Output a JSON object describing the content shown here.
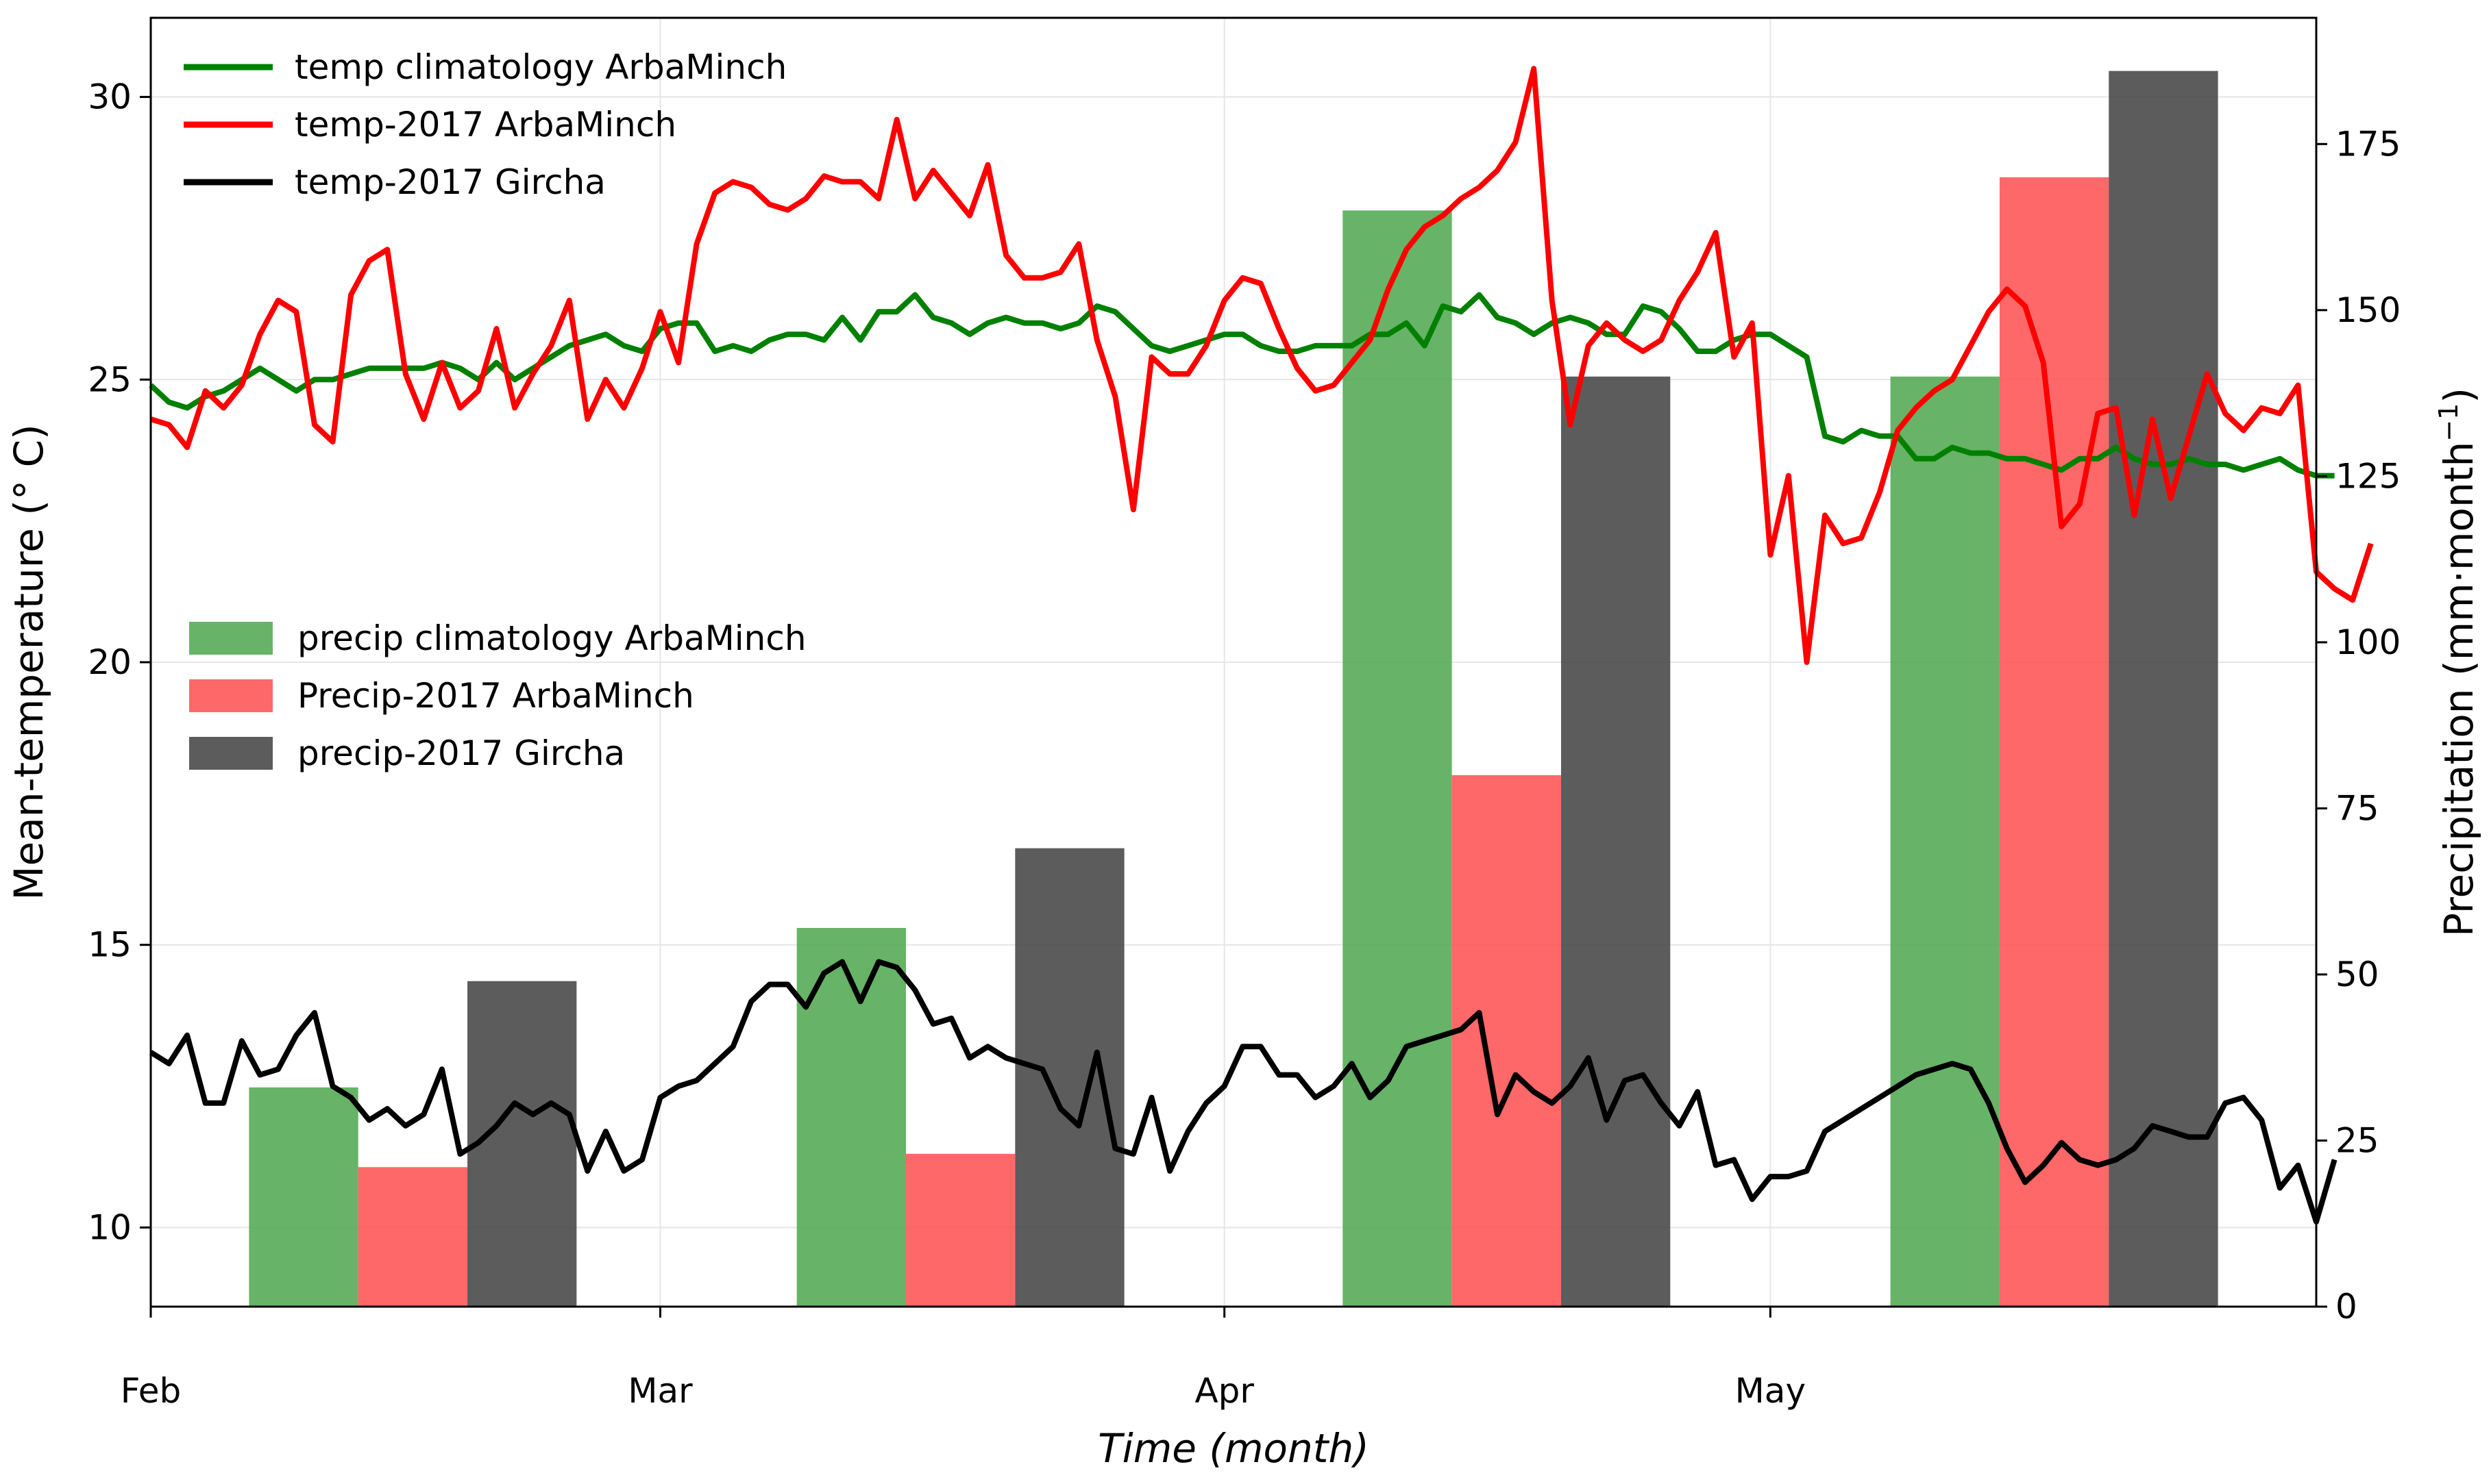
{
  "chart_data": {
    "type": "bar+line",
    "title": "",
    "xlabel": "Time (month)",
    "ylabel_left": "Mean-temperature (° C)",
    "ylabel_right": "Precipitation (mm·month⁻¹)",
    "x_unit": "day index from 1 Feb (0 = Feb 1)",
    "x_range": [
      0,
      119
    ],
    "ylim_left": [
      8.6,
      31.4
    ],
    "ylim_right": [
      0,
      194
    ],
    "x_ticks": [
      {
        "label": "Feb",
        "value": 0
      },
      {
        "label": "Mar",
        "value": 28
      },
      {
        "label": "Apr",
        "value": 59
      },
      {
        "label": "May",
        "value": 89
      }
    ],
    "y_ticks_left": [
      10,
      15,
      20,
      25,
      30
    ],
    "y_ticks_right": [
      0,
      25,
      50,
      75,
      100,
      125,
      150,
      175
    ],
    "grid": true,
    "bar_width_days": 6,
    "bar_groups": [
      {
        "month": "Feb",
        "start_day": 5.4
      },
      {
        "month": "Mar",
        "start_day": 35.5
      },
      {
        "month": "Apr",
        "start_day": 65.5
      },
      {
        "month": "May",
        "start_day": 95.6
      }
    ],
    "bar_series": [
      {
        "name": "precip climatology ArbaMinch",
        "color": "#4ca64c",
        "values": [
          33,
          57,
          165,
          140
        ]
      },
      {
        "name": "Precip-2017 ArbaMinch",
        "color": "#ff4d4d",
        "values": [
          21,
          23,
          80,
          170
        ]
      },
      {
        "name": "precip-2017 Gircha",
        "color": "#404040",
        "values": [
          49,
          69,
          140,
          186
        ]
      }
    ],
    "line_series": [
      {
        "name": "temp climatology ArbaMinch",
        "color": "#008000",
        "x_start": 0,
        "x_step": 1,
        "values": [
          24.9,
          24.6,
          24.5,
          24.7,
          24.8,
          25.0,
          25.2,
          25.0,
          24.8,
          25.0,
          25.0,
          25.1,
          25.2,
          25.2,
          25.2,
          25.2,
          25.3,
          25.2,
          25.0,
          25.3,
          25.0,
          25.2,
          25.4,
          25.6,
          25.7,
          25.8,
          25.6,
          25.5,
          25.9,
          26.0,
          26.0,
          25.5,
          25.6,
          25.5,
          25.7,
          25.8,
          25.8,
          25.7,
          26.1,
          25.7,
          26.2,
          26.2,
          26.5,
          26.1,
          26.0,
          25.8,
          26.0,
          26.1,
          26.0,
          26.0,
          25.9,
          26.0,
          26.3,
          26.2,
          25.9,
          25.6,
          25.5,
          25.6,
          25.7,
          25.8,
          25.8,
          25.6,
          25.5,
          25.5,
          25.6,
          25.6,
          25.6,
          25.8,
          25.8,
          26.0,
          25.6,
          26.3,
          26.2,
          26.5,
          26.1,
          26.0,
          25.8,
          26.0,
          26.1,
          26.0,
          25.8,
          25.8,
          26.3,
          26.2,
          25.9,
          25.5,
          25.5,
          25.7,
          25.8,
          25.8,
          25.6,
          25.4,
          24.0,
          23.9,
          24.1,
          24.0,
          24.0,
          23.6,
          23.6,
          23.8,
          23.7,
          23.7,
          23.6,
          23.6,
          23.5,
          23.4,
          23.6,
          23.6,
          23.8,
          23.6,
          23.5,
          23.5,
          23.6,
          23.5,
          23.5,
          23.4,
          23.5,
          23.6,
          23.4,
          23.3,
          23.3
        ]
      },
      {
        "name": "temp-2017 ArbaMinch",
        "color": "#ff0000",
        "x_start": 0,
        "x_step": 1,
        "values": [
          24.3,
          24.2,
          23.8,
          24.8,
          24.5,
          24.9,
          25.8,
          26.4,
          26.2,
          24.2,
          23.9,
          26.5,
          27.1,
          27.3,
          25.1,
          24.3,
          25.3,
          24.5,
          24.8,
          25.9,
          24.5,
          25.1,
          25.6,
          26.4,
          24.3,
          25.0,
          24.5,
          25.2,
          26.2,
          25.3,
          27.4,
          28.3,
          28.5,
          28.4,
          28.1,
          28.0,
          28.2,
          28.6,
          28.5,
          28.5,
          28.2,
          29.6,
          28.2,
          28.7,
          28.3,
          27.9,
          28.8,
          27.2,
          26.8,
          26.8,
          26.9,
          27.4,
          25.7,
          24.7,
          22.7,
          25.4,
          25.1,
          25.1,
          25.6,
          26.4,
          26.8,
          26.7,
          25.9,
          25.2,
          24.8,
          24.9,
          25.3,
          25.7,
          26.6,
          27.3,
          27.7,
          27.9,
          28.2,
          28.4,
          28.7,
          29.2,
          30.5,
          26.4,
          24.2,
          25.6,
          26.0,
          25.7,
          25.5,
          25.7,
          26.4,
          26.9,
          27.6,
          25.4,
          26.0,
          21.9,
          23.3,
          20.0,
          22.6,
          22.1,
          22.2,
          23.0,
          24.1,
          24.5,
          24.8,
          25.0,
          25.6,
          26.2,
          26.6,
          26.3,
          25.3,
          22.4,
          22.8,
          24.4,
          24.5,
          22.6,
          24.3,
          22.9,
          24.0,
          25.1,
          24.4,
          24.1,
          24.5,
          24.4,
          24.9,
          21.6,
          21.3,
          21.1,
          22.1
        ]
      },
      {
        "name": "temp-2017 Gircha",
        "color": "#000000",
        "x_start": 0,
        "x_step": 1,
        "values": [
          13.1,
          12.9,
          13.4,
          12.2,
          12.2,
          13.3,
          12.7,
          12.8,
          13.4,
          13.8,
          12.5,
          12.3,
          11.9,
          12.1,
          11.8,
          12.0,
          12.8,
          11.3,
          11.5,
          11.8,
          12.2,
          12.0,
          12.2,
          12.0,
          11.0,
          11.7,
          11.0,
          11.2,
          12.3,
          12.5,
          12.6,
          12.9,
          13.2,
          14.0,
          14.3,
          14.3,
          13.9,
          14.5,
          14.7,
          14.0,
          14.7,
          14.6,
          14.2,
          13.6,
          13.7,
          13.0,
          13.2,
          13.0,
          12.9,
          12.8,
          12.1,
          11.8,
          13.1,
          11.4,
          11.3,
          12.3,
          11.0,
          11.7,
          12.2,
          12.5,
          13.2,
          13.2,
          12.7,
          12.7,
          12.3,
          12.5,
          12.9,
          12.3,
          12.6,
          13.2,
          13.3,
          13.4,
          13.5,
          13.8,
          12.0,
          12.7,
          12.4,
          12.2,
          12.5,
          13.0,
          11.9,
          12.6,
          12.7,
          12.2,
          11.8,
          12.4,
          11.1,
          11.2,
          10.5,
          10.9,
          10.9,
          11.0,
          11.7,
          11.9,
          12.1,
          12.3,
          12.5,
          12.7,
          12.8,
          12.9,
          12.8,
          12.2,
          11.4,
          10.8,
          11.1,
          11.5,
          11.2,
          11.1,
          11.2,
          11.4,
          11.8,
          11.7,
          11.6,
          11.6,
          12.2,
          12.3,
          11.9,
          10.7,
          11.1,
          10.1,
          11.2
        ]
      }
    ],
    "legends": [
      {
        "id": "temp-legend",
        "placement": "top-left",
        "entries": [
          "temp climatology ArbaMinch",
          "temp-2017 ArbaMinch",
          "temp-2017 Gircha"
        ]
      },
      {
        "id": "precip-legend",
        "placement": "center-left",
        "entries": [
          "precip climatology ArbaMinch",
          "Precip-2017 ArbaMinch",
          "precip-2017 Gircha"
        ]
      }
    ]
  }
}
